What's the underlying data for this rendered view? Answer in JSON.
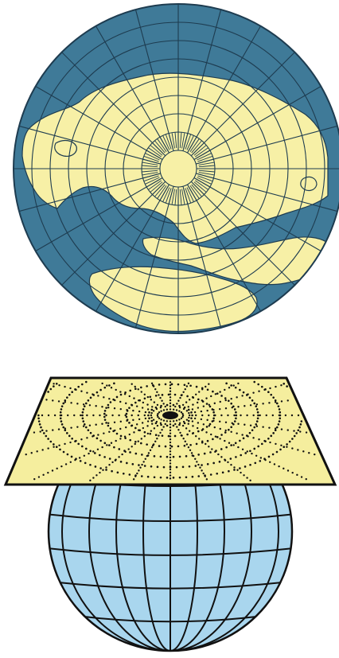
{
  "figure": {
    "top_panel": {
      "kind": "polar azimuthal map projection",
      "center": "north pole",
      "parallels_deg": [
        80,
        70,
        60,
        50,
        40,
        30,
        20,
        10
      ],
      "meridian_step_deg": 15
    },
    "bottom_panel": {
      "kind": "plane tangent to globe",
      "dotted_rings": 6,
      "dotted_rays": 24,
      "globe_parallels": 6,
      "globe_meridians": 9
    }
  },
  "colors": {
    "ocean": "#3f7a98",
    "land": "#f7f0a6",
    "graticule": "#1e3c50",
    "plane": "#f5ee9e",
    "globe": "#a9d6ee",
    "ink": "#111111"
  }
}
